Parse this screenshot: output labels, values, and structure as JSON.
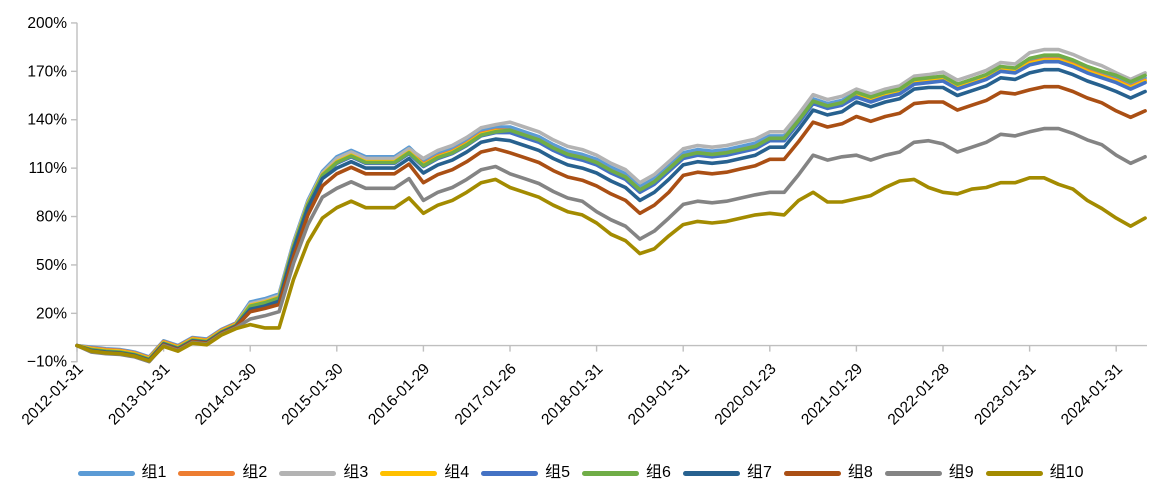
{
  "chart_data": {
    "type": "line",
    "title": "",
    "xlabel": "",
    "ylabel": "",
    "grid": "none",
    "legend_position": "bottom",
    "y_axis": {
      "min": -10,
      "max": 200,
      "step": 30,
      "unit": "%"
    },
    "y_tick_labels": [
      "200%",
      "170%",
      "140%",
      "110%",
      "80%",
      "50%",
      "20%",
      "−10%"
    ],
    "x_tick_labels": [
      "2012-01-31",
      "2013-01-31",
      "2014-01-30",
      "2015-01-30",
      "2016-01-29",
      "2017-01-26",
      "2018-01-31",
      "2019-01-31",
      "2020-01-23",
      "2021-01-29",
      "2022-01-28",
      "2023-01-31",
      "2024-01-31"
    ],
    "x": [
      "2012-01",
      "2012-03",
      "2012-05",
      "2012-07",
      "2012-09",
      "2012-11",
      "2013-01",
      "2013-03",
      "2013-05",
      "2013-07",
      "2013-09",
      "2013-11",
      "2014-01",
      "2014-03",
      "2014-05",
      "2014-07",
      "2014-09",
      "2014-11",
      "2015-01",
      "2015-03",
      "2015-05",
      "2015-07",
      "2015-09",
      "2015-11",
      "2016-01",
      "2016-03",
      "2016-05",
      "2016-07",
      "2016-09",
      "2016-11",
      "2017-01",
      "2017-03",
      "2017-05",
      "2017-07",
      "2017-09",
      "2017-11",
      "2018-01",
      "2018-03",
      "2018-05",
      "2018-07",
      "2018-09",
      "2018-11",
      "2019-01",
      "2019-03",
      "2019-05",
      "2019-07",
      "2019-09",
      "2019-11",
      "2020-01",
      "2020-03",
      "2020-05",
      "2020-07",
      "2020-09",
      "2020-11",
      "2021-01",
      "2021-03",
      "2021-05",
      "2021-07",
      "2021-09",
      "2021-11",
      "2022-01",
      "2022-03",
      "2022-05",
      "2022-07",
      "2022-09",
      "2022-11",
      "2023-01",
      "2023-03",
      "2023-05",
      "2023-07",
      "2023-09",
      "2023-11",
      "2024-01",
      "2024-03",
      "2024-05"
    ],
    "y_unit": "percent",
    "series": [
      {
        "name": "组1",
        "color": "#5B9BD5",
        "values": [
          0,
          -1,
          -2,
          -2.5,
          -4,
          -7,
          3,
          0,
          5,
          4,
          10,
          14,
          27,
          29,
          32,
          64,
          90,
          108,
          117,
          121,
          117,
          117,
          117,
          123,
          114.5,
          119.5,
          122.5,
          127.5,
          133.5,
          135.5,
          135.5,
          132.5,
          129.5,
          124.5,
          120.5,
          118.5,
          115.5,
          110.5,
          106.5,
          98.5,
          103.5,
          111.5,
          119.5,
          121.5,
          120.5,
          121.5,
          123.5,
          125.5,
          130,
          130,
          141,
          153,
          150,
          152,
          157,
          154,
          157,
          159,
          165,
          166,
          166.5,
          161.5,
          164.5,
          167.5,
          172.5,
          171.5,
          176,
          178,
          178,
          175,
          171,
          168,
          166,
          162,
          166
        ]
      },
      {
        "name": "组2",
        "color": "#ED7D31",
        "values": [
          0,
          -1.5,
          -2.5,
          -3,
          -4.5,
          -7.5,
          2.5,
          -0.5,
          4.5,
          3.5,
          9.5,
          13.5,
          25.5,
          27.5,
          30.5,
          62.5,
          88.5,
          106.5,
          114.5,
          118.5,
          114.5,
          114.5,
          114.5,
          120.5,
          112.5,
          117.5,
          120.5,
          125.5,
          131.5,
          133.5,
          133.5,
          130.5,
          127.5,
          122.5,
          118.5,
          116.5,
          113.5,
          108.5,
          104.5,
          96.5,
          101.5,
          109.5,
          117.5,
          119.5,
          118.5,
          119.5,
          121.5,
          123.5,
          128.5,
          128.5,
          139.5,
          151.5,
          148.5,
          150.5,
          155.5,
          152.5,
          155.5,
          157.5,
          163.5,
          164.5,
          165.5,
          160.5,
          163.5,
          166.5,
          171.5,
          170.5,
          175.5,
          177.5,
          177.5,
          174.5,
          170.5,
          167.5,
          164.5,
          160.5,
          164.5
        ]
      },
      {
        "name": "组3",
        "color": "#B3B3B3",
        "values": [
          0,
          -2,
          -3,
          -3.5,
          -5,
          -8,
          2,
          -1,
          4,
          3,
          9,
          13,
          26,
          28,
          31,
          63,
          89,
          107,
          116,
          120,
          116,
          116,
          116,
          122,
          116,
          121,
          124,
          129,
          135,
          137,
          138.5,
          135.5,
          132.5,
          127.5,
          123.5,
          121.5,
          118,
          113,
          109,
          101,
          106,
          114,
          122,
          124,
          123,
          124,
          126,
          128,
          132.5,
          132.5,
          143.5,
          155.5,
          152.5,
          154.5,
          159,
          156,
          159,
          161,
          167,
          168,
          169.5,
          164.5,
          167.5,
          170.5,
          175.5,
          174.5,
          181.5,
          183.5,
          183.5,
          180.5,
          176.5,
          173.5,
          169,
          165,
          169
        ]
      },
      {
        "name": "组4",
        "color": "#FFC000",
        "values": [
          0,
          -2,
          -3,
          -3.5,
          -5,
          -8,
          2,
          -1,
          4,
          3,
          9,
          13,
          25,
          27,
          30,
          62,
          88,
          106,
          114,
          118,
          114,
          114,
          114,
          120,
          112,
          117,
          120,
          125,
          131,
          133,
          133,
          130,
          127,
          122,
          118,
          116,
          113,
          108,
          104,
          96,
          101,
          109,
          117,
          119,
          118,
          119,
          121,
          123,
          128,
          128,
          139,
          151,
          148,
          150,
          155,
          152,
          155,
          157,
          163,
          164,
          165,
          160,
          163,
          166,
          171,
          170,
          175,
          177,
          177,
          174,
          170,
          167,
          164,
          160,
          164
        ]
      },
      {
        "name": "组5",
        "color": "#4472C4",
        "values": [
          0,
          -3,
          -4,
          -4.5,
          -6,
          -9,
          1,
          -2,
          3,
          2,
          8,
          12,
          24,
          26,
          29,
          61,
          87,
          105,
          113,
          117,
          113,
          113,
          113,
          119,
          111,
          116,
          119,
          124,
          130,
          132,
          132,
          129,
          126,
          121,
          117,
          115,
          112,
          107,
          103,
          95,
          100,
          108,
          116,
          118,
          117,
          118,
          120,
          122,
          127,
          127,
          138,
          150,
          147,
          149,
          154,
          151,
          154,
          156,
          162,
          163,
          164,
          159,
          162,
          165,
          170,
          169,
          174,
          176,
          176,
          173,
          169,
          166,
          163,
          159,
          163
        ]
      },
      {
        "name": "组6",
        "color": "#70AD47",
        "values": [
          0,
          -2.5,
          -3.5,
          -4,
          -5.5,
          -8.5,
          1.5,
          -1.5,
          3.5,
          2.5,
          8.5,
          12.5,
          24.5,
          26.5,
          29.5,
          61.5,
          87.5,
          105.5,
          113.5,
          117.5,
          113.5,
          113.5,
          113.5,
          119.5,
          111.5,
          116.5,
          119.5,
          124.5,
          130.5,
          132.5,
          133.5,
          130.5,
          127.5,
          122.5,
          118.5,
          116.5,
          113.5,
          108.5,
          104.5,
          96.5,
          101.5,
          109.5,
          117.5,
          119.5,
          118.5,
          119.5,
          121.5,
          123.5,
          128.5,
          128.5,
          139.5,
          151.5,
          148.5,
          150.5,
          157,
          154,
          157,
          159,
          165,
          166,
          167,
          162,
          165,
          168,
          173,
          172,
          178,
          180,
          180,
          177,
          173,
          170,
          167.5,
          163.5,
          167.5
        ]
      },
      {
        "name": "组7",
        "color": "#27618F",
        "values": [
          0,
          -3,
          -4,
          -4.5,
          -6,
          -9,
          1,
          -2,
          3,
          2,
          8,
          12,
          22.5,
          24.5,
          27.5,
          59.5,
          85.5,
          103.5,
          110,
          114,
          110,
          110,
          110,
          116,
          107,
          112,
          115,
          120,
          126,
          128,
          127,
          124,
          121,
          116,
          112,
          110,
          107,
          102,
          98,
          90,
          95,
          103,
          112,
          114,
          113,
          114,
          116,
          118,
          123,
          123,
          134,
          146,
          143,
          145,
          151,
          148,
          151,
          153,
          159,
          160,
          160,
          155,
          158,
          161,
          166,
          165,
          169,
          171,
          171,
          168,
          164,
          161,
          157.5,
          153.5,
          157.5
        ]
      },
      {
        "name": "组8",
        "color": "#AA4F14",
        "values": [
          0,
          -3.5,
          -4.5,
          -5,
          -6.5,
          -9.5,
          0.5,
          -2.5,
          2.5,
          1.5,
          7.5,
          11.5,
          21,
          23,
          25.5,
          55,
          81,
          99,
          106.5,
          110.5,
          106.5,
          106.5,
          106.5,
          112.5,
          101,
          106,
          109,
          114,
          120,
          122,
          119.5,
          116.5,
          113.5,
          108.5,
          104.5,
          102.5,
          99,
          94,
          90,
          82,
          87,
          95,
          105.5,
          107.5,
          106.5,
          107.5,
          109.5,
          111.5,
          115.5,
          115.5,
          126.5,
          138.5,
          135.5,
          137.5,
          142,
          139,
          142,
          144,
          150,
          151,
          151,
          146,
          149,
          152,
          157,
          156,
          158.5,
          160.5,
          160.5,
          157.5,
          153.5,
          150.5,
          145.5,
          141.5,
          145.5
        ]
      },
      {
        "name": "组9",
        "color": "#848484",
        "values": [
          0,
          -4,
          -5,
          -5.5,
          -7,
          -10,
          0,
          -3,
          2,
          1,
          7,
          11,
          16.5,
          18.5,
          21,
          51,
          75,
          92,
          97.5,
          101.5,
          97.5,
          97.5,
          97.5,
          103.5,
          90,
          95,
          98,
          103,
          109,
          111,
          106.5,
          103.5,
          100.5,
          95.5,
          91.5,
          89.5,
          83,
          78,
          74,
          66,
          71,
          79,
          87.5,
          89.5,
          88.5,
          89.5,
          91.5,
          93.5,
          95,
          95,
          106,
          118,
          115,
          117,
          118,
          115,
          118,
          120,
          126,
          127,
          125,
          120,
          123,
          126,
          131,
          130,
          132.5,
          134.5,
          134.5,
          131.5,
          127.5,
          124.5,
          118,
          113,
          117
        ]
      },
      {
        "name": "组10",
        "color": "#A38B00",
        "values": [
          0,
          -3.5,
          -4.5,
          -5,
          -6.5,
          -9.5,
          -0.5,
          -3.5,
          1.5,
          0.5,
          6.5,
          10.5,
          13,
          11,
          11,
          41,
          64,
          79,
          85.5,
          89.5,
          85.5,
          85.5,
          85.5,
          91.5,
          82,
          87,
          90,
          95,
          101,
          103,
          98,
          95,
          92,
          87,
          83,
          81,
          76,
          69,
          65,
          57,
          60,
          68,
          75,
          77,
          76,
          77,
          79,
          81,
          82,
          81,
          90,
          95,
          89,
          89,
          91,
          93,
          98,
          102,
          103,
          98,
          95,
          94,
          97,
          98,
          101,
          101,
          104,
          104,
          100,
          97,
          90,
          85,
          79,
          74,
          79
        ]
      }
    ]
  },
  "style": {
    "axis_color": "#BFBFBF",
    "text_color": "#000000",
    "background": "#FFFFFF"
  }
}
